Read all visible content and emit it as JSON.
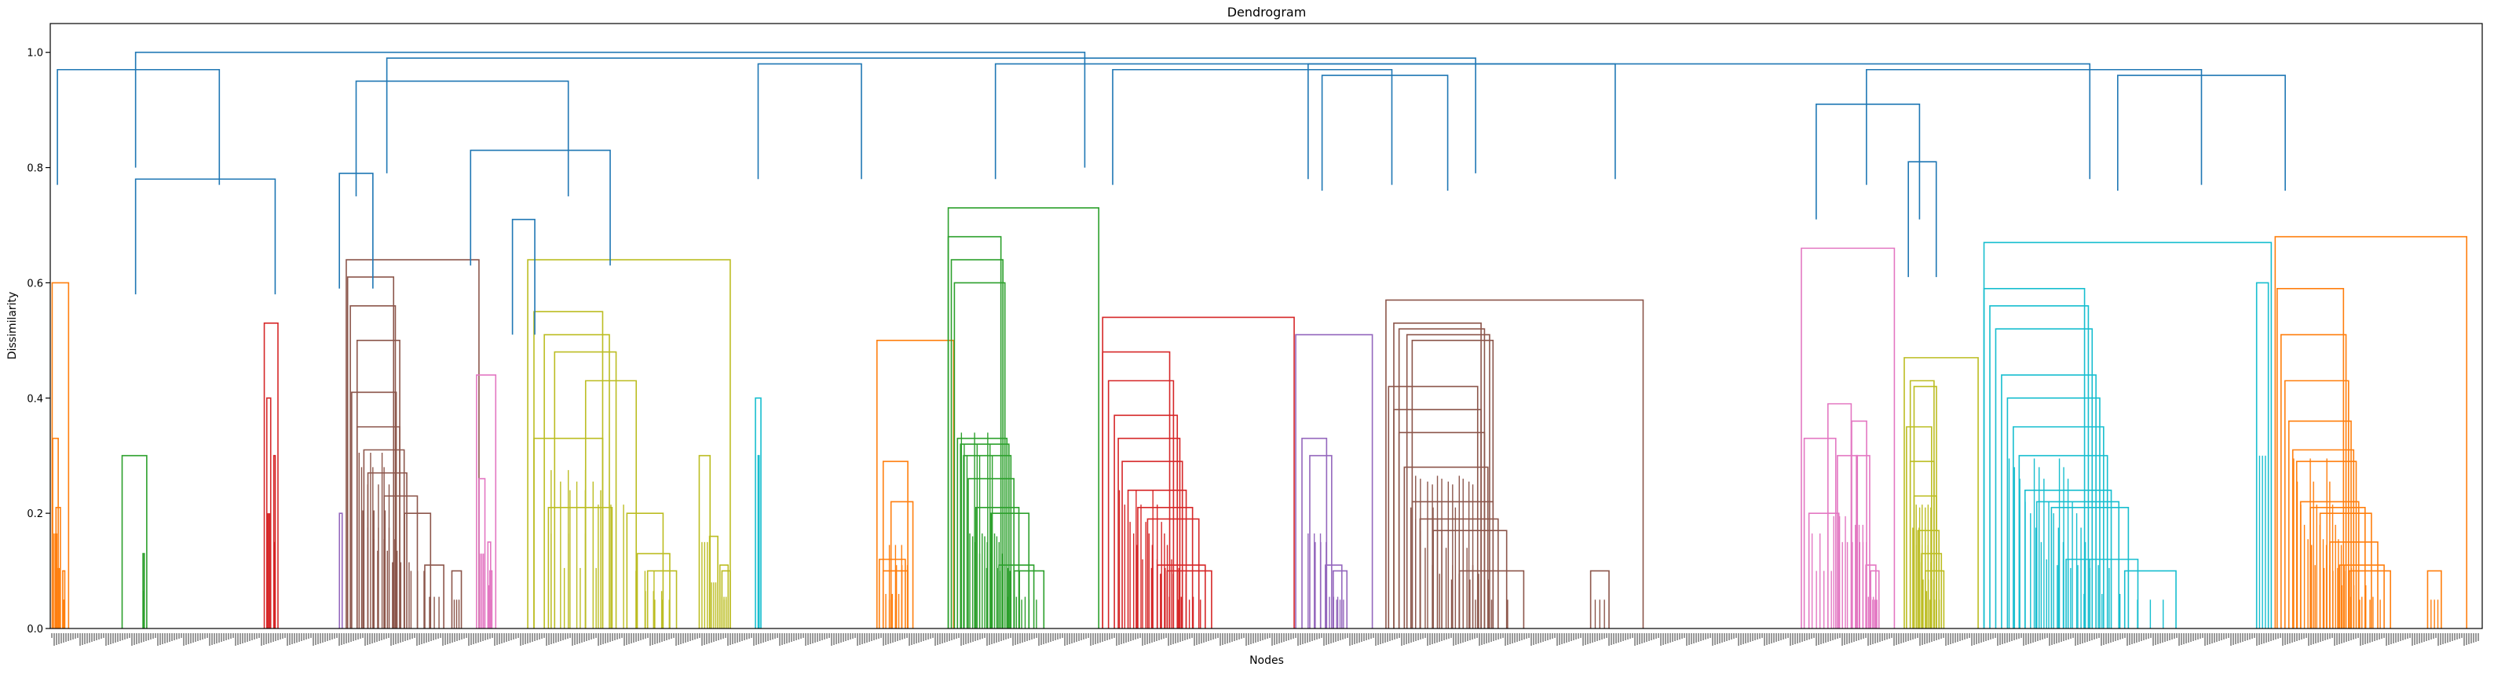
{
  "chart_data": {
    "type": "dendrogram",
    "title": "Dendrogram",
    "xlabel": "Nodes",
    "ylabel": "Dissimilarity",
    "ylim": [
      0,
      1.05
    ],
    "yticks": [
      0.0,
      0.2,
      0.4,
      0.6,
      0.8,
      1.0
    ],
    "ytick_labels": [
      "0.0",
      "0.2",
      "0.4",
      "0.6",
      "0.8",
      "1.0"
    ],
    "above_threshold_color": "#1f77b4",
    "grid": false,
    "leaf_labels_note": "dense unreadable leaf labels along x-axis",
    "clusters": [
      {
        "color": "#ff7f0e",
        "range": [
          0.0,
          0.6
        ],
        "height": 0.6,
        "subs": [
          [
            0.05,
            0.33
          ],
          [
            0.25,
            0.21
          ],
          [
            0.65,
            0.1
          ]
        ]
      },
      {
        "color": "#2ca02c",
        "range": [
          2.5,
          3.4
        ],
        "height": 0.3,
        "subs": [
          [
            0.85,
            0.13
          ]
        ]
      },
      {
        "color": "#d62728",
        "range": [
          7.6,
          8.1
        ],
        "height": 0.53,
        "subs": [
          [
            0.2,
            0.4
          ],
          [
            0.7,
            0.3
          ]
        ]
      },
      {
        "color": "#9467bd",
        "range": [
          10.3,
          10.4
        ],
        "height": 0.2,
        "subs": []
      },
      {
        "color": "#8c564b",
        "range": [
          10.45,
          15.3
        ],
        "height": 0.64,
        "subs": [
          [
            0.03,
            0.61
          ],
          [
            0.05,
            0.56
          ],
          [
            0.1,
            0.5
          ],
          [
            0.06,
            0.41
          ],
          [
            0.1,
            0.35
          ],
          [
            0.15,
            0.31
          ],
          [
            0.18,
            0.27
          ],
          [
            0.3,
            0.23
          ],
          [
            0.45,
            0.2
          ],
          [
            0.6,
            0.11
          ],
          [
            0.8,
            0.1
          ]
        ]
      },
      {
        "color": "#e377c2",
        "range": [
          15.2,
          15.9
        ],
        "height": 0.44,
        "subs": [
          [
            0.15,
            0.26
          ],
          [
            0.6,
            0.15
          ],
          [
            0.7,
            0.1
          ]
        ]
      },
      {
        "color": "#bcbd22",
        "range": [
          16.9,
          24.3
        ],
        "height": 0.64,
        "subs": [
          [
            0.05,
            0.55
          ],
          [
            0.1,
            0.51
          ],
          [
            0.15,
            0.48
          ],
          [
            0.3,
            0.43
          ],
          [
            0.05,
            0.33
          ],
          [
            0.12,
            0.21
          ],
          [
            0.5,
            0.2
          ],
          [
            0.55,
            0.13
          ],
          [
            0.6,
            0.1
          ],
          [
            0.85,
            0.3
          ],
          [
            0.9,
            0.16
          ],
          [
            0.95,
            0.11
          ],
          [
            0.96,
            0.1
          ]
        ]
      },
      {
        "color": "#17becf",
        "range": [
          25.2,
          25.4
        ],
        "height": 0.4,
        "subs": [
          [
            0.5,
            0.3
          ]
        ]
      },
      {
        "color": "#ff7f0e",
        "range": [
          29.5,
          32.3
        ],
        "height": 0.5,
        "subs": [
          [
            0.1,
            0.29
          ],
          [
            0.2,
            0.22
          ],
          [
            0.05,
            0.12
          ],
          [
            0.1,
            0.1
          ]
        ]
      },
      {
        "color": "#2ca02c",
        "range": [
          32.0,
          37.5
        ],
        "height": 0.73,
        "subs": [
          [
            0.02,
            0.68
          ],
          [
            0.04,
            0.64
          ],
          [
            0.06,
            0.6
          ],
          [
            0.08,
            0.33
          ],
          [
            0.1,
            0.32
          ],
          [
            0.12,
            0.3
          ],
          [
            0.15,
            0.26
          ],
          [
            0.2,
            0.21
          ],
          [
            0.3,
            0.2
          ],
          [
            0.35,
            0.11
          ],
          [
            0.45,
            0.1
          ]
        ]
      },
      {
        "color": "#d62728",
        "range": [
          37.5,
          44.5
        ],
        "height": 0.54,
        "subs": [
          [
            0.02,
            0.48
          ],
          [
            0.05,
            0.43
          ],
          [
            0.08,
            0.37
          ],
          [
            0.1,
            0.33
          ],
          [
            0.12,
            0.29
          ],
          [
            0.15,
            0.24
          ],
          [
            0.2,
            0.21
          ],
          [
            0.25,
            0.19
          ],
          [
            0.3,
            0.11
          ],
          [
            0.35,
            0.1
          ]
        ]
      },
      {
        "color": "#9467bd",
        "range": [
          44.5,
          47.3
        ],
        "height": 0.51,
        "subs": [
          [
            0.1,
            0.33
          ],
          [
            0.2,
            0.3
          ],
          [
            0.4,
            0.11
          ],
          [
            0.5,
            0.1
          ]
        ]
      },
      {
        "color": "#8c564b",
        "range": [
          47.6,
          57.0
        ],
        "height": 0.57,
        "subs": [
          [
            0.05,
            0.53
          ],
          [
            0.07,
            0.52
          ],
          [
            0.1,
            0.51
          ],
          [
            0.12,
            0.5
          ],
          [
            0.03,
            0.42
          ],
          [
            0.05,
            0.38
          ],
          [
            0.07,
            0.34
          ],
          [
            0.09,
            0.28
          ],
          [
            0.12,
            0.22
          ],
          [
            0.15,
            0.19
          ],
          [
            0.2,
            0.17
          ],
          [
            0.3,
            0.1
          ],
          [
            0.8,
            0.1
          ]
        ]
      },
      {
        "color": "#e377c2",
        "range": [
          62.6,
          66.0
        ],
        "height": 0.66,
        "subs": [
          [
            0.05,
            0.33
          ],
          [
            0.1,
            0.2
          ],
          [
            0.3,
            0.39
          ],
          [
            0.4,
            0.3
          ],
          [
            0.55,
            0.36
          ],
          [
            0.6,
            0.3
          ],
          [
            0.7,
            0.11
          ],
          [
            0.75,
            0.1
          ]
        ]
      },
      {
        "color": "#bcbd22",
        "range": [
          66.3,
          69.0
        ],
        "height": 0.47,
        "subs": [
          [
            0.1,
            0.43
          ],
          [
            0.15,
            0.42
          ],
          [
            0.05,
            0.35
          ],
          [
            0.1,
            0.29
          ],
          [
            0.15,
            0.23
          ],
          [
            0.2,
            0.17
          ],
          [
            0.25,
            0.13
          ],
          [
            0.3,
            0.1
          ]
        ]
      },
      {
        "color": "#17becf",
        "range": [
          69.0,
          79.5
        ],
        "height": 0.67,
        "subs": [
          [
            0.02,
            0.59
          ],
          [
            0.04,
            0.56
          ],
          [
            0.06,
            0.52
          ],
          [
            0.08,
            0.44
          ],
          [
            0.1,
            0.4
          ],
          [
            0.12,
            0.35
          ],
          [
            0.14,
            0.3
          ],
          [
            0.16,
            0.24
          ],
          [
            0.2,
            0.22
          ],
          [
            0.25,
            0.21
          ],
          [
            0.3,
            0.12
          ],
          [
            0.5,
            0.1
          ],
          [
            0.95,
            0.6
          ]
        ]
      },
      {
        "color": "#ff7f0e",
        "range": [
          79.5,
          86.5
        ],
        "height": 0.68,
        "subs": [
          [
            0.03,
            0.59
          ],
          [
            0.05,
            0.51
          ],
          [
            0.07,
            0.43
          ],
          [
            0.09,
            0.36
          ],
          [
            0.11,
            0.31
          ],
          [
            0.13,
            0.29
          ],
          [
            0.15,
            0.22
          ],
          [
            0.2,
            0.21
          ],
          [
            0.25,
            0.2
          ],
          [
            0.3,
            0.15
          ],
          [
            0.35,
            0.11
          ],
          [
            0.4,
            0.1
          ],
          [
            0.8,
            0.1
          ]
        ]
      }
    ],
    "top_links": [
      {
        "height": 1.0,
        "between": [
          3.0,
          37.0
        ]
      },
      {
        "height": 0.97,
        "between": [
          0.2,
          6.0
        ]
      },
      {
        "height": 0.78,
        "between": [
          3.0,
          8.0
        ]
      },
      {
        "height": 0.99,
        "between": [
          12.0,
          51.0
        ]
      },
      {
        "height": 0.95,
        "between": [
          10.9,
          18.5
        ]
      },
      {
        "height": 0.79,
        "between": [
          10.3,
          11.5
        ]
      },
      {
        "height": 0.83,
        "between": [
          15.0,
          20.0
        ]
      },
      {
        "height": 0.71,
        "between": [
          16.5,
          17.3
        ]
      },
      {
        "height": 0.98,
        "between": [
          25.3,
          29.0
        ]
      },
      {
        "height": 0.98,
        "between": [
          45.0,
          73.0
        ]
      },
      {
        "height": 0.98,
        "between": [
          33.8,
          56.0
        ]
      },
      {
        "height": 0.97,
        "between": [
          38.0,
          48.0
        ]
      },
      {
        "height": 0.96,
        "between": [
          45.5,
          50.0
        ]
      },
      {
        "height": 0.97,
        "between": [
          65.0,
          77.0
        ]
      },
      {
        "height": 0.91,
        "between": [
          63.2,
          66.9
        ]
      },
      {
        "height": 0.81,
        "between": [
          66.5,
          67.5
        ]
      },
      {
        "height": 0.96,
        "between": [
          74.0,
          80.0
        ]
      }
    ]
  }
}
